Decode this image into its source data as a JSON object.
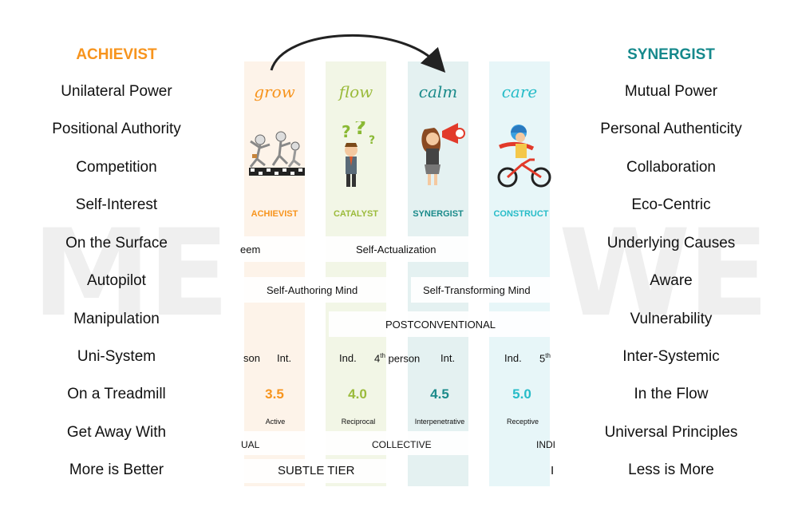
{
  "watermark": {
    "left": "ME",
    "right": "WE"
  },
  "left": {
    "heading": "ACHIEVIST",
    "items": [
      "Unilateral Power",
      "Positional Authority",
      "Competition",
      "Self-Interest",
      "On the Surface",
      "Autopilot",
      "Manipulation",
      "Uni-System",
      "On a Treadmill",
      "Get Away With",
      "More is Better"
    ]
  },
  "right": {
    "heading": "SYNERGIST",
    "items": [
      "Mutual Power",
      "Personal Authenticity",
      "Collaboration",
      "Eco-Centric",
      "Underlying Causes",
      "Aware",
      "Vulnerability",
      "Inter-Systemic",
      "In the Flow",
      "Universal Principles",
      "Less is More"
    ]
  },
  "columns": [
    {
      "word": "grow",
      "label": "ACHIEVIST",
      "stage": "3.5",
      "desc": "Active"
    },
    {
      "word": "flow",
      "label": "CATALYST",
      "stage": "4.0",
      "desc": "Reciprocal"
    },
    {
      "word": "calm",
      "label": "SYNERGIST",
      "stage": "4.5",
      "desc": "Interpenetrative"
    },
    {
      "word": "care",
      "label": "CONSTRUCT",
      "stage": "5.0",
      "desc": "Receptive"
    }
  ],
  "rows": {
    "eem": "eem",
    "self_actualization": "Self-Actualization",
    "self_authoring": "Self-Authoring Mind",
    "self_transforming": "Self-Transforming Mind",
    "postconventional": "POSTCONVENTIONAL",
    "son": "son",
    "int1": "Int.",
    "ind1": "Ind.",
    "fourth_num": "4",
    "fourth_sup": "th",
    "fourth_word": "person",
    "int2": "Int.",
    "ind2": "Ind.",
    "fifth_num": "5",
    "fifth_sup": "th",
    "ual": "UAL",
    "collective": "COLLECTIVE",
    "indi": "INDI",
    "subtle_tier": "SUBTLE TIER",
    "edge_i": "I"
  },
  "colors": {
    "orange": "#f7941d",
    "green": "#9bbb3b",
    "teal": "#1a8a8a",
    "cyan": "#27bcc8",
    "left_heading": "#f7941d",
    "right_heading": "#16898c"
  }
}
